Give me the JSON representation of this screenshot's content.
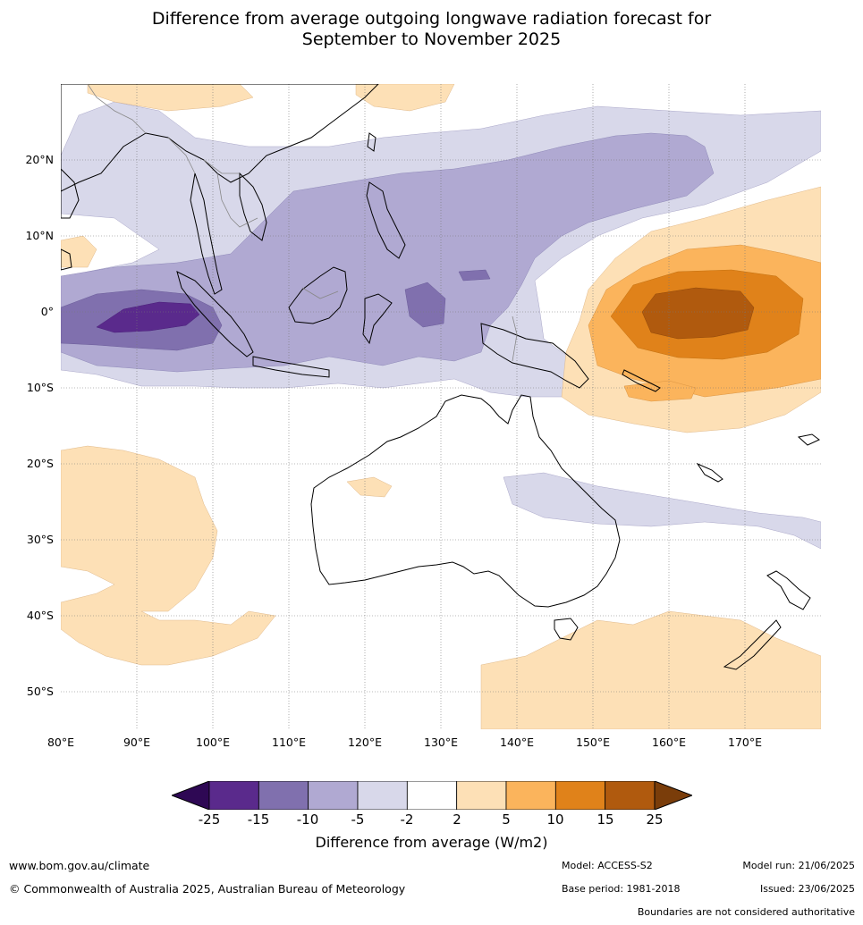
{
  "title": {
    "line1": "Difference from average outgoing longwave radiation forecast for",
    "line2": "September to November 2025"
  },
  "map": {
    "lon_range": [
      80,
      180
    ],
    "lat_range": [
      -55,
      30
    ],
    "lat_labels": [
      "20°N",
      "10°N",
      "0°",
      "10°S",
      "20°S",
      "30°S",
      "40°S",
      "50°S"
    ],
    "lon_labels": [
      "80°E",
      "90°E",
      "100°E",
      "110°E",
      "120°E",
      "130°E",
      "140°E",
      "150°E",
      "160°E",
      "170°E"
    ]
  },
  "legend": {
    "colors": [
      "#2e0854",
      "#5a2a8c",
      "#8070ae",
      "#b0a9d2",
      "#d8d8ea",
      "#ffffff",
      "#fde0b6",
      "#fbb45c",
      "#e0821a",
      "#b05a0e",
      "#7a3d0a"
    ],
    "tick_labels": [
      "-25",
      "-15",
      "-10",
      "-5",
      "-2",
      "2",
      "5",
      "10",
      "15",
      "25"
    ],
    "title": "Difference from average (W/m2)"
  },
  "footer": {
    "url": "www.bom.gov.au/climate",
    "copyright": "© Commonwealth of Australia 2025, Australian Bureau of Meteorology",
    "model": "Model: ACCESS-S2",
    "base_period": "Base period: 1981-2018",
    "model_run": "Model run: 21/06/2025",
    "issued": "Issued: 23/06/2025",
    "disclaimer": "Boundaries are not considered authoritative"
  }
}
